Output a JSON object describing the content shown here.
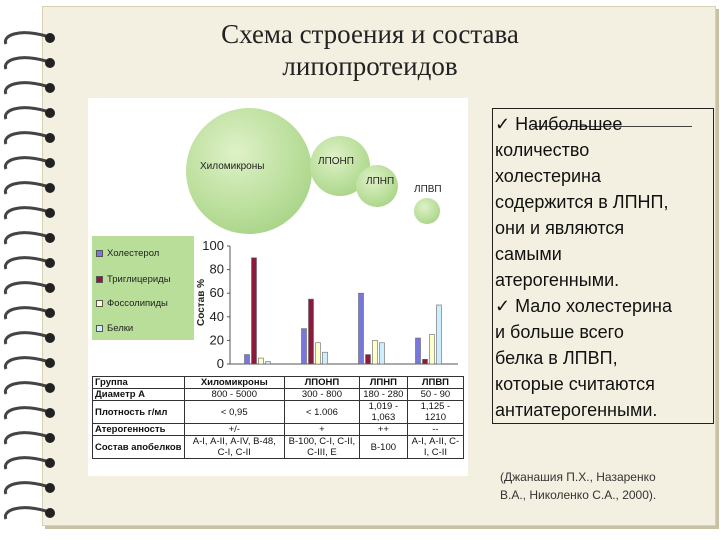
{
  "title": {
    "line1": "Схема строения и состава",
    "line2": "липопротеидов"
  },
  "bubbles": {
    "chylomicrons": "Хиломикроны",
    "vldl": "ЛПОНП",
    "ldl": "ЛПНП",
    "hdl": "ЛПВП"
  },
  "legend": {
    "items": [
      {
        "label": "Холестерол",
        "color": "#7777dd"
      },
      {
        "label": "Триглицериды",
        "color": "#8b1a3c"
      },
      {
        "label": "Фоссолипиды",
        "color": "#ffffcc"
      },
      {
        "label": "Белки",
        "color": "#cceeff"
      }
    ]
  },
  "chart_data": {
    "type": "bar",
    "ylabel": "Состав %",
    "ylim": [
      0,
      100
    ],
    "yticks": [
      "100",
      "80",
      "60",
      "40",
      "20",
      "0"
    ],
    "categories": [
      "Хиломикроны",
      "ЛПОНП",
      "ЛПНП",
      "ЛПВП"
    ],
    "series": [
      {
        "name": "Холестерол",
        "values": [
          8,
          30,
          60,
          22
        ]
      },
      {
        "name": "Триглицериды",
        "values": [
          90,
          55,
          8,
          4
        ]
      },
      {
        "name": "Фоссолипиды",
        "values": [
          5,
          18,
          20,
          25
        ]
      },
      {
        "name": "Белки",
        "values": [
          2,
          10,
          18,
          50
        ]
      }
    ],
    "colors": [
      "#7777dd",
      "#8b1a3c",
      "#ffffcc",
      "#cceeff"
    ]
  },
  "table": {
    "rows": [
      {
        "label": "Группа",
        "cells": [
          "Хиломикроны",
          "ЛПОНП",
          "ЛПНП",
          "ЛПВП"
        ]
      },
      {
        "label": "Диаметр А",
        "cells": [
          "800 - 5000",
          "300 - 800",
          "180 - 280",
          "50 - 90"
        ]
      },
      {
        "label": "Плотность г/мл",
        "cells": [
          "< 0,95",
          "< 1.006",
          "1,019 - 1,063",
          "1,125 - 1210"
        ]
      },
      {
        "label": "Атерогенность",
        "cells": [
          "+/-",
          "+",
          "++",
          "--"
        ]
      },
      {
        "label": "Состав апобелков",
        "cells": [
          "А-I, А-II, А-IV, В-48, С-I, С-II",
          "В-100, С-I, С-II, С-III, Е",
          "В-100",
          "А-I, А-II, С-I, С-II"
        ]
      }
    ]
  },
  "textbox": {
    "lines": [
      "✓ Наибольшее",
      "количество",
      "холестерина",
      "содержится в ЛПНП,",
      "они и являются",
      "самыми",
      "атерогенными.",
      "✓ Мало холестерина",
      "и больше всего",
      "белка в ЛПВП,",
      "которые считаются",
      "антиатерогенными."
    ]
  },
  "citation": {
    "line1": "(Джанашия П.Х., Назаренко",
    "line2": "В.А., Николенко С.А., 2000)."
  }
}
